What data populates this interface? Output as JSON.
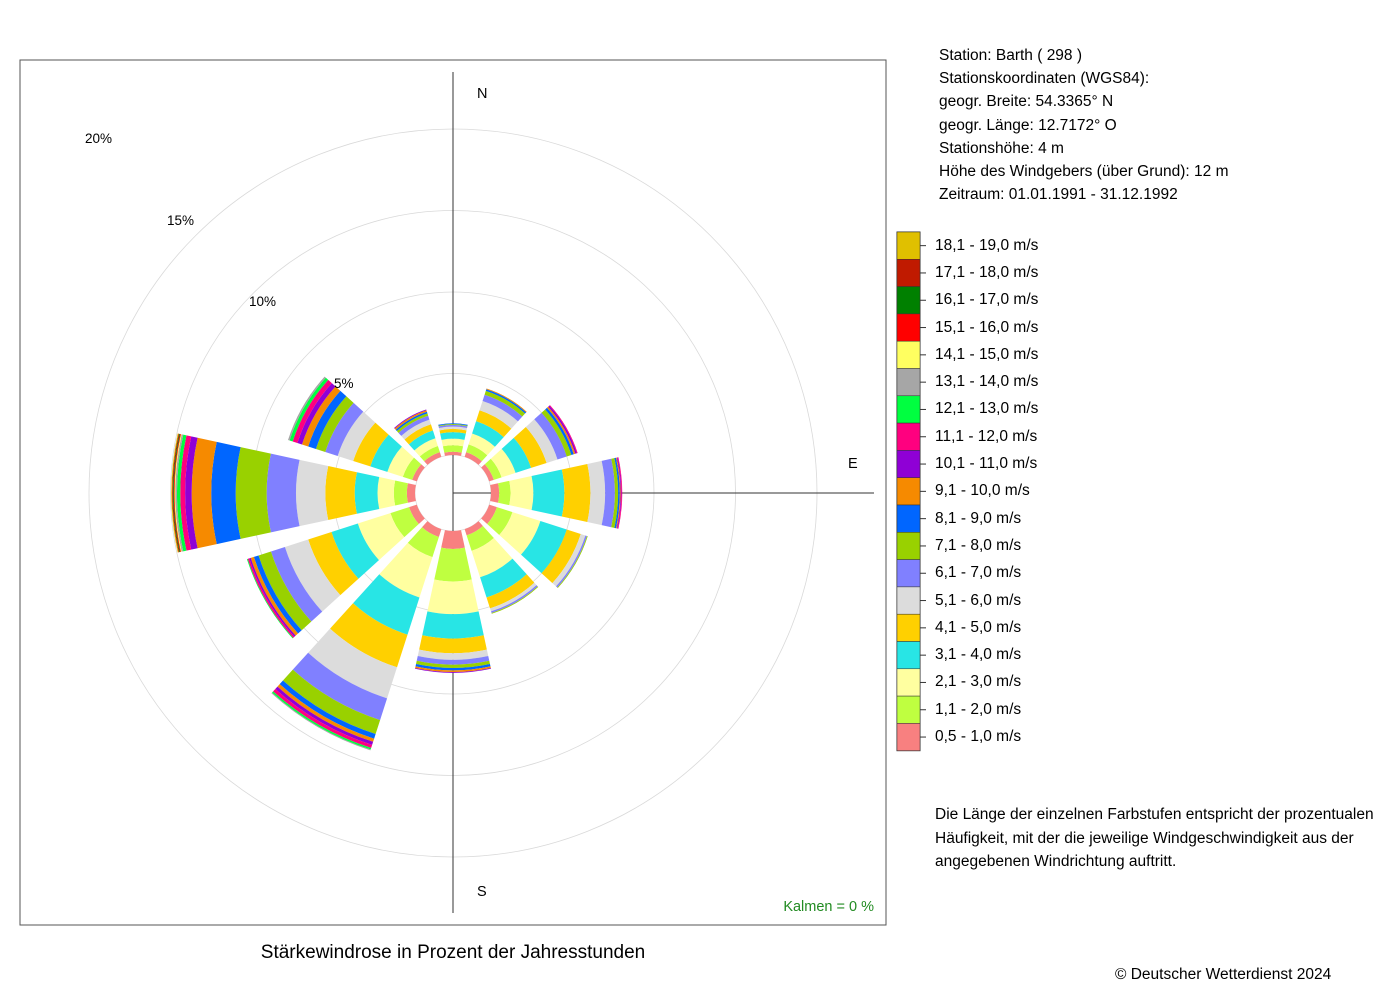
{
  "title": "Stärkewindrose in Prozent der Jahresstunden",
  "station": {
    "name_line": "Station:  Barth  ( 298 )",
    "coords_label": "Stationskoordinaten (WGS84):",
    "lat_line": "geogr. Breite: 54.3365° N",
    "lon_line": "geogr. Länge: 12.7172° O",
    "height_line": "Stationshöhe: 4 m",
    "anemometer_line": "Höhe des Windgebers (über Grund): 12 m",
    "period_line": "Zeitraum: 01.01.1991 - 31.12.1992"
  },
  "note": {
    "line1": "Die Länge der einzelnen Farbstufen entspricht der prozentualen",
    "line2": "Häufigkeit, mit der die jeweilige Windgeschwindigkeit aus der",
    "line3": "angegebenen Windrichtung auftritt."
  },
  "calm": "Kalmen  =  0 %",
  "copyright": "© Deutscher Wetterdienst  2024",
  "directions": {
    "n": "N",
    "e": "E",
    "s": "S"
  },
  "ring_labels": {
    "r5": "5%",
    "r10": "10%",
    "r15": "15%",
    "r20": "20%"
  },
  "chart_data": {
    "type": "polar-stacked-bar",
    "title": "Stärkewindrose in Prozent der Jahresstunden",
    "sectors_deg": [
      0,
      30,
      60,
      90,
      120,
      150,
      180,
      210,
      240,
      270,
      300,
      330
    ],
    "rings_percent": [
      5,
      10,
      15,
      20
    ],
    "speed_classes": [
      {
        "label": "0,5 - 1,0 m/s",
        "color": "#f88080"
      },
      {
        "label": "1,1 - 2,0 m/s",
        "color": "#bfff40"
      },
      {
        "label": "2,1 - 3,0 m/s",
        "color": "#ffffa0"
      },
      {
        "label": "3,1 - 4,0 m/s",
        "color": "#28e5e5"
      },
      {
        "label": "4,1 - 5,0 m/s",
        "color": "#ffd000"
      },
      {
        "label": "5,1 - 6,0 m/s",
        "color": "#dcdcdc"
      },
      {
        "label": "6,1 - 7,0 m/s",
        "color": "#8080ff"
      },
      {
        "label": "7,1 - 8,0 m/s",
        "color": "#99d100"
      },
      {
        "label": "8,1 - 9,0 m/s",
        "color": "#0066ff"
      },
      {
        "label": "9,1 - 10,0 m/s",
        "color": "#f68a00"
      },
      {
        "label": "10,1 - 11,0 m/s",
        "color": "#8f00d6"
      },
      {
        "label": "11,1 - 12,0 m/s",
        "color": "#ff007f"
      },
      {
        "label": "12,1 - 13,0 m/s",
        "color": "#00ff40"
      },
      {
        "label": "13,1 - 14,0 m/s",
        "color": "#a6a6a6"
      },
      {
        "label": "14,1 - 15,0 m/s",
        "color": "#ffff60"
      },
      {
        "label": "15,1 - 16,0 m/s",
        "color": "#ff0000"
      },
      {
        "label": "16,1 - 17,0 m/s",
        "color": "#008000"
      },
      {
        "label": "17,1 - 18,0 m/s",
        "color": "#c01a00"
      },
      {
        "label": "18,1 - 19,0 m/s",
        "color": "#e0c000"
      }
    ],
    "series": [
      {
        "dir": 0,
        "values": [
          0.2,
          0.4,
          0.4,
          0.4,
          0.2,
          0.15,
          0.1,
          0.05,
          0.05
        ]
      },
      {
        "dir": 30,
        "values": [
          0.3,
          0.5,
          0.7,
          0.8,
          0.7,
          0.6,
          0.4,
          0.25,
          0.1,
          0.05
        ]
      },
      {
        "dir": 60,
        "values": [
          0.3,
          0.5,
          0.9,
          1.0,
          1.0,
          0.7,
          0.6,
          0.3,
          0.15,
          0.1,
          0.1,
          0.05
        ]
      },
      {
        "dir": 90,
        "values": [
          0.5,
          0.7,
          1.4,
          1.9,
          1.6,
          0.9,
          0.6,
          0.2,
          0.1,
          0.05,
          0.05,
          0.05
        ]
      },
      {
        "dir": 120,
        "values": [
          0.5,
          1.0,
          1.8,
          1.7,
          0.9,
          0.3,
          0.1,
          0.05
        ]
      },
      {
        "dir": 150,
        "values": [
          0.4,
          1.0,
          1.7,
          1.3,
          0.7,
          0.2,
          0.1,
          0.05
        ]
      },
      {
        "dir": 180,
        "values": [
          1.1,
          2.0,
          2.0,
          1.5,
          0.9,
          0.4,
          0.3,
          0.2,
          0.15,
          0.1,
          0.05
        ]
      },
      {
        "dir": 210,
        "values": [
          0.5,
          1.3,
          2.6,
          2.4,
          2.1,
          2.0,
          1.4,
          0.9,
          0.3,
          0.2,
          0.2,
          0.2,
          0.1,
          0.05
        ]
      },
      {
        "dir": 240,
        "values": [
          0.5,
          1.2,
          2.1,
          1.7,
          1.5,
          1.5,
          0.9,
          0.8,
          0.3,
          0.2,
          0.1,
          0.1,
          0.05
        ]
      },
      {
        "dir": 270,
        "values": [
          0.5,
          0.8,
          1.0,
          1.4,
          1.8,
          1.8,
          1.8,
          1.9,
          1.5,
          1.2,
          0.4,
          0.3,
          0.2,
          0.1,
          0.05,
          0.05,
          0.05,
          0.05,
          0.05
        ]
      },
      {
        "dir": 300,
        "values": [
          0.3,
          0.6,
          1.0,
          1.1,
          1.1,
          1.0,
          0.8,
          0.6,
          0.5,
          0.4,
          0.3,
          0.3,
          0.2,
          0.1
        ]
      },
      {
        "dir": 330,
        "values": [
          0.3,
          0.4,
          0.5,
          0.5,
          0.4,
          0.3,
          0.25,
          0.15,
          0.1,
          0.1,
          0.05
        ]
      }
    ]
  }
}
